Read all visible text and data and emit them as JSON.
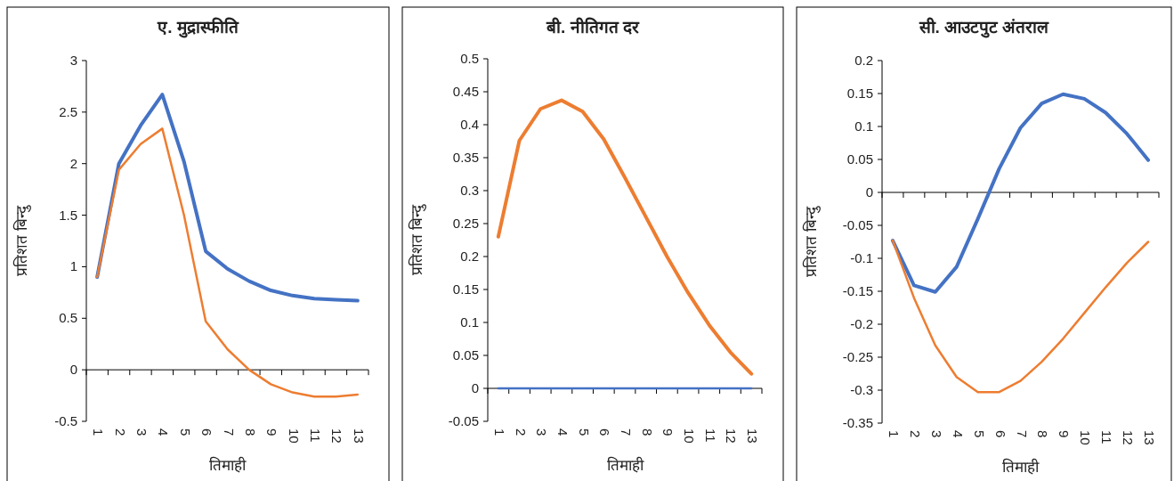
{
  "chart_data": [
    {
      "type": "line",
      "title": "ए. मुद्रास्फीति",
      "xlabel": "तिमाही",
      "ylabel": "प्रतिशत बिन्दु",
      "categories": [
        "1",
        "2",
        "3",
        "4",
        "5",
        "6",
        "7",
        "8",
        "9",
        "10",
        "11",
        "12",
        "13"
      ],
      "ylim": [
        -0.5,
        3
      ],
      "yticks": [
        -0.5,
        0,
        0.5,
        1,
        1.5,
        2,
        2.5,
        3
      ],
      "series": [
        {
          "color": "#4472c4",
          "values": [
            0.9,
            2.0,
            2.37,
            2.67,
            2.02,
            1.15,
            0.98,
            0.86,
            0.77,
            0.72,
            0.69,
            0.68,
            0.67
          ]
        },
        {
          "color": "#ed7d31",
          "values": [
            0.9,
            1.94,
            2.19,
            2.34,
            1.5,
            0.47,
            0.2,
            0.0,
            -0.14,
            -0.22,
            -0.26,
            -0.26,
            -0.24
          ]
        }
      ]
    },
    {
      "type": "line",
      "title": "बी. नीतिगत दर",
      "xlabel": "तिमाही",
      "ylabel": "प्रतिशत बिन्दु",
      "categories": [
        "1",
        "2",
        "3",
        "4",
        "5",
        "6",
        "7",
        "8",
        "9",
        "10",
        "11",
        "12",
        "13"
      ],
      "ylim": [
        -0.05,
        0.5
      ],
      "yticks": [
        -0.05,
        0,
        0.05,
        0.1,
        0.15,
        0.2,
        0.25,
        0.3,
        0.35,
        0.4,
        0.45,
        0.5
      ],
      "series": [
        {
          "color": "#ed7d31",
          "values": [
            0.23,
            0.376,
            0.424,
            0.437,
            0.42,
            0.378,
            0.32,
            0.26,
            0.2,
            0.145,
            0.096,
            0.055,
            0.022
          ]
        },
        {
          "color": "#4472c4",
          "values": [
            0,
            0,
            0,
            0,
            0,
            0,
            0,
            0,
            0,
            0,
            0,
            0,
            0
          ]
        }
      ]
    },
    {
      "type": "line",
      "title": "सी. आउटपुट अंतराल",
      "xlabel": "तिमाही",
      "ylabel": "प्रतिशत बिन्दु",
      "categories": [
        "1",
        "2",
        "3",
        "4",
        "5",
        "6",
        "7",
        "8",
        "9",
        "10",
        "11",
        "12",
        "13"
      ],
      "ylim": [
        -0.35,
        0.2
      ],
      "yticks": [
        -0.35,
        -0.3,
        -0.25,
        -0.2,
        -0.15,
        -0.1,
        -0.05,
        0,
        0.05,
        0.1,
        0.15,
        0.2
      ],
      "series": [
        {
          "color": "#4472c4",
          "values": [
            -0.073,
            -0.141,
            -0.151,
            -0.113,
            -0.04,
            0.036,
            0.098,
            0.135,
            0.149,
            0.142,
            0.121,
            0.089,
            0.049
          ]
        },
        {
          "color": "#ed7d31",
          "values": [
            -0.073,
            -0.16,
            -0.232,
            -0.28,
            -0.303,
            -0.303,
            -0.286,
            -0.257,
            -0.222,
            -0.183,
            -0.144,
            -0.107,
            -0.075
          ]
        }
      ]
    }
  ]
}
